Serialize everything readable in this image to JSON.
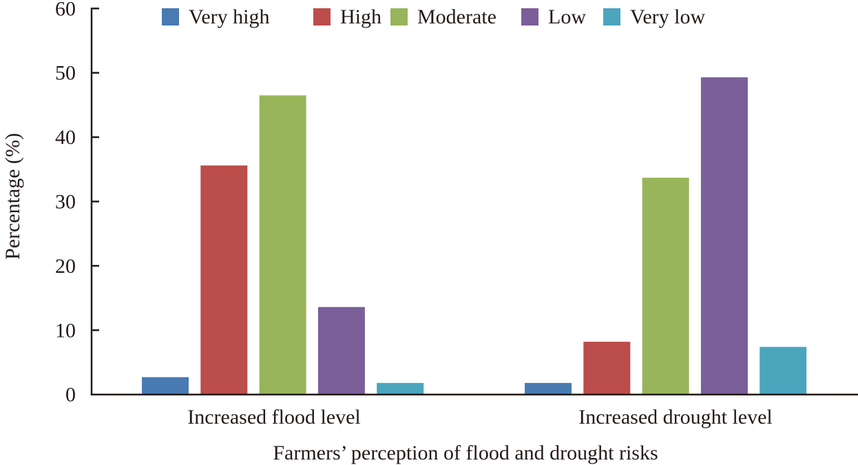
{
  "chart_data": {
    "type": "bar",
    "title": "",
    "xlabel": "Farmers’ perception of flood and drought risks",
    "ylabel": "Percentage (%)",
    "ylim": [
      0,
      60
    ],
    "yticks": [
      0,
      10,
      20,
      30,
      40,
      50,
      60
    ],
    "ytick_labels": [
      "0",
      "10",
      "20",
      "30",
      "40",
      "50",
      "60"
    ],
    "categories": [
      "Increased flood level",
      "Increased drought level"
    ],
    "series": [
      {
        "name": "Very high",
        "color": "#4a7ab2",
        "values": [
          2.7,
          1.8
        ]
      },
      {
        "name": "High",
        "color": "#bb4d4b",
        "values": [
          35.6,
          8.2
        ]
      },
      {
        "name": "Moderate",
        "color": "#98b55b",
        "values": [
          46.5,
          33.7
        ]
      },
      {
        "name": "Low",
        "color": "#7a5f99",
        "values": [
          13.6,
          49.3
        ]
      },
      {
        "name": "Very low",
        "color": "#4ba5bd",
        "values": [
          1.8,
          7.4
        ]
      }
    ],
    "legend_position": "top-center",
    "grid": false
  }
}
